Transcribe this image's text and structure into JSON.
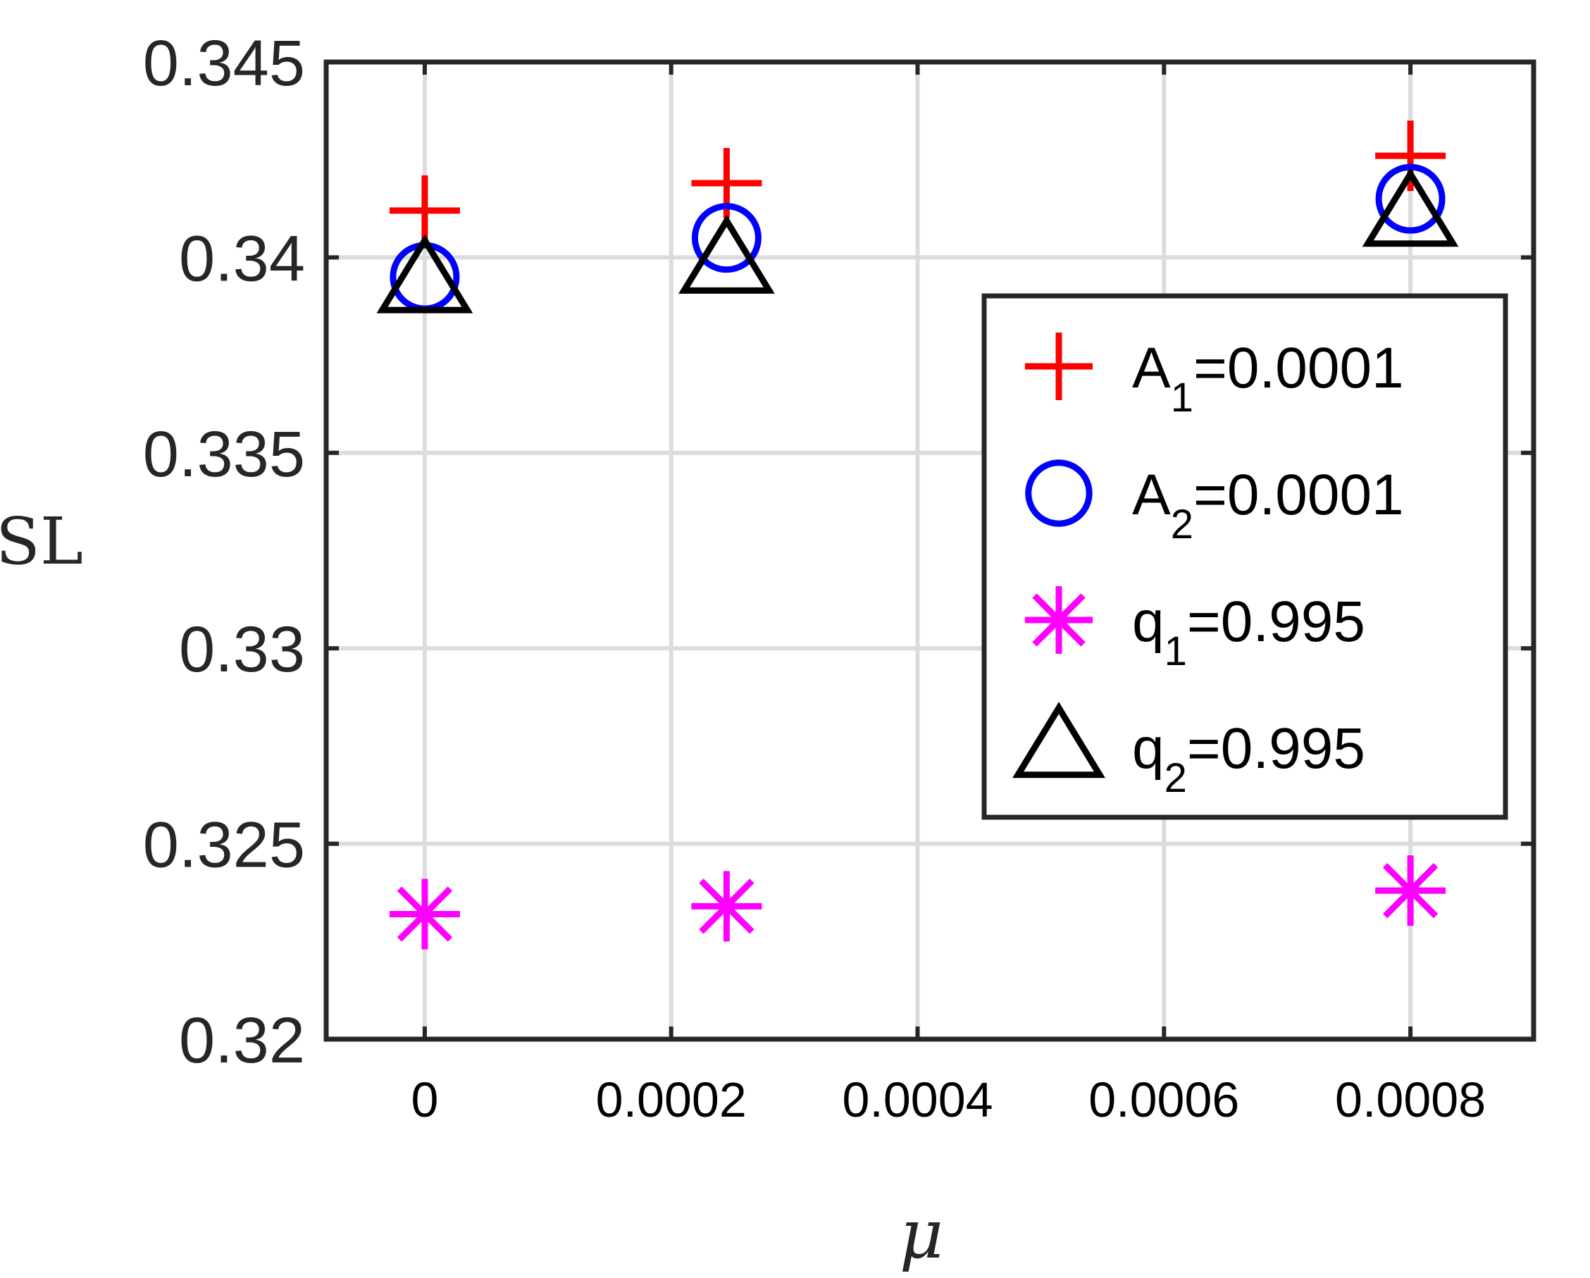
{
  "chart_data": {
    "type": "scatter",
    "xlabel": "μ",
    "ylabel": "SL",
    "xlim": [
      -8e-05,
      0.0009
    ],
    "ylim": [
      0.32,
      0.345
    ],
    "x_ticks": [
      0,
      0.0002,
      0.0004,
      0.0006,
      0.0008
    ],
    "x_tick_labels": [
      "0",
      "0.0002",
      "0.0004",
      "0.0006",
      "0.0008"
    ],
    "y_ticks": [
      0.32,
      0.325,
      0.33,
      0.335,
      0.34,
      0.345
    ],
    "y_tick_labels": [
      "0.32",
      "0.325",
      "0.33",
      "0.335",
      "0.34",
      "0.345"
    ],
    "grid": true,
    "legend_position": "right",
    "series": [
      {
        "name": "A1=0.0001",
        "label_main": "A",
        "label_sub": "1",
        "label_rest": "=0.0001",
        "marker": "plus",
        "color": "#ff0000",
        "x": [
          0,
          0.000245,
          0.0008
        ],
        "y": [
          0.3412,
          0.3419,
          0.3426
        ]
      },
      {
        "name": "A2=0.0001",
        "label_main": "A",
        "label_sub": "2",
        "label_rest": "=0.0001",
        "marker": "circle",
        "color": "#0000ff",
        "x": [
          0,
          0.000245,
          0.0008
        ],
        "y": [
          0.3395,
          0.3405,
          0.3415
        ]
      },
      {
        "name": "q1=0.995",
        "label_main": "q",
        "label_sub": "1",
        "label_rest": "=0.995",
        "marker": "asterisk",
        "color": "#ff00ff",
        "x": [
          0,
          0.000245,
          0.0008
        ],
        "y": [
          0.3232,
          0.3234,
          0.3238
        ]
      },
      {
        "name": "q2=0.995",
        "label_main": "q",
        "label_sub": "2",
        "label_rest": "=0.995",
        "marker": "triangle",
        "color": "#000000",
        "x": [
          0,
          0.000245,
          0.0008
        ],
        "y": [
          0.3394,
          0.3399,
          0.3411
        ]
      }
    ]
  }
}
